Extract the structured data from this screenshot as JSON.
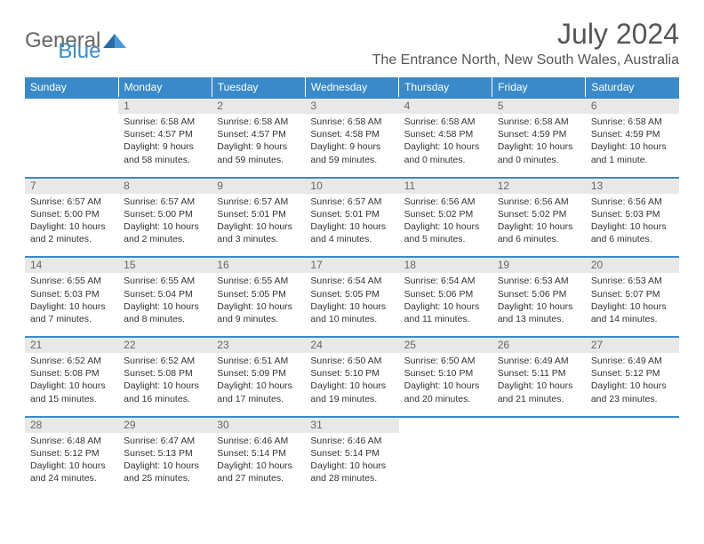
{
  "logo": {
    "text1": "General",
    "text2": "Blue"
  },
  "title": "July 2024",
  "location": "The Entrance North, New South Wales, Australia",
  "colors": {
    "header_bg": "#3a8ac9",
    "daynum_bg": "#e8e8e8",
    "text": "#333333"
  },
  "days_of_week": [
    "Sunday",
    "Monday",
    "Tuesday",
    "Wednesday",
    "Thursday",
    "Friday",
    "Saturday"
  ],
  "weeks": [
    {
      "nums": [
        "",
        "1",
        "2",
        "3",
        "4",
        "5",
        "6"
      ],
      "cells": [
        {
          "sunrise": "",
          "sunset": "",
          "daylight": ""
        },
        {
          "sunrise": "Sunrise: 6:58 AM",
          "sunset": "Sunset: 4:57 PM",
          "daylight": "Daylight: 9 hours and 58 minutes."
        },
        {
          "sunrise": "Sunrise: 6:58 AM",
          "sunset": "Sunset: 4:57 PM",
          "daylight": "Daylight: 9 hours and 59 minutes."
        },
        {
          "sunrise": "Sunrise: 6:58 AM",
          "sunset": "Sunset: 4:58 PM",
          "daylight": "Daylight: 9 hours and 59 minutes."
        },
        {
          "sunrise": "Sunrise: 6:58 AM",
          "sunset": "Sunset: 4:58 PM",
          "daylight": "Daylight: 10 hours and 0 minutes."
        },
        {
          "sunrise": "Sunrise: 6:58 AM",
          "sunset": "Sunset: 4:59 PM",
          "daylight": "Daylight: 10 hours and 0 minutes."
        },
        {
          "sunrise": "Sunrise: 6:58 AM",
          "sunset": "Sunset: 4:59 PM",
          "daylight": "Daylight: 10 hours and 1 minute."
        }
      ]
    },
    {
      "nums": [
        "7",
        "8",
        "9",
        "10",
        "11",
        "12",
        "13"
      ],
      "cells": [
        {
          "sunrise": "Sunrise: 6:57 AM",
          "sunset": "Sunset: 5:00 PM",
          "daylight": "Daylight: 10 hours and 2 minutes."
        },
        {
          "sunrise": "Sunrise: 6:57 AM",
          "sunset": "Sunset: 5:00 PM",
          "daylight": "Daylight: 10 hours and 2 minutes."
        },
        {
          "sunrise": "Sunrise: 6:57 AM",
          "sunset": "Sunset: 5:01 PM",
          "daylight": "Daylight: 10 hours and 3 minutes."
        },
        {
          "sunrise": "Sunrise: 6:57 AM",
          "sunset": "Sunset: 5:01 PM",
          "daylight": "Daylight: 10 hours and 4 minutes."
        },
        {
          "sunrise": "Sunrise: 6:56 AM",
          "sunset": "Sunset: 5:02 PM",
          "daylight": "Daylight: 10 hours and 5 minutes."
        },
        {
          "sunrise": "Sunrise: 6:56 AM",
          "sunset": "Sunset: 5:02 PM",
          "daylight": "Daylight: 10 hours and 6 minutes."
        },
        {
          "sunrise": "Sunrise: 6:56 AM",
          "sunset": "Sunset: 5:03 PM",
          "daylight": "Daylight: 10 hours and 6 minutes."
        }
      ]
    },
    {
      "nums": [
        "14",
        "15",
        "16",
        "17",
        "18",
        "19",
        "20"
      ],
      "cells": [
        {
          "sunrise": "Sunrise: 6:55 AM",
          "sunset": "Sunset: 5:03 PM",
          "daylight": "Daylight: 10 hours and 7 minutes."
        },
        {
          "sunrise": "Sunrise: 6:55 AM",
          "sunset": "Sunset: 5:04 PM",
          "daylight": "Daylight: 10 hours and 8 minutes."
        },
        {
          "sunrise": "Sunrise: 6:55 AM",
          "sunset": "Sunset: 5:05 PM",
          "daylight": "Daylight: 10 hours and 9 minutes."
        },
        {
          "sunrise": "Sunrise: 6:54 AM",
          "sunset": "Sunset: 5:05 PM",
          "daylight": "Daylight: 10 hours and 10 minutes."
        },
        {
          "sunrise": "Sunrise: 6:54 AM",
          "sunset": "Sunset: 5:06 PM",
          "daylight": "Daylight: 10 hours and 11 minutes."
        },
        {
          "sunrise": "Sunrise: 6:53 AM",
          "sunset": "Sunset: 5:06 PM",
          "daylight": "Daylight: 10 hours and 13 minutes."
        },
        {
          "sunrise": "Sunrise: 6:53 AM",
          "sunset": "Sunset: 5:07 PM",
          "daylight": "Daylight: 10 hours and 14 minutes."
        }
      ]
    },
    {
      "nums": [
        "21",
        "22",
        "23",
        "24",
        "25",
        "26",
        "27"
      ],
      "cells": [
        {
          "sunrise": "Sunrise: 6:52 AM",
          "sunset": "Sunset: 5:08 PM",
          "daylight": "Daylight: 10 hours and 15 minutes."
        },
        {
          "sunrise": "Sunrise: 6:52 AM",
          "sunset": "Sunset: 5:08 PM",
          "daylight": "Daylight: 10 hours and 16 minutes."
        },
        {
          "sunrise": "Sunrise: 6:51 AM",
          "sunset": "Sunset: 5:09 PM",
          "daylight": "Daylight: 10 hours and 17 minutes."
        },
        {
          "sunrise": "Sunrise: 6:50 AM",
          "sunset": "Sunset: 5:10 PM",
          "daylight": "Daylight: 10 hours and 19 minutes."
        },
        {
          "sunrise": "Sunrise: 6:50 AM",
          "sunset": "Sunset: 5:10 PM",
          "daylight": "Daylight: 10 hours and 20 minutes."
        },
        {
          "sunrise": "Sunrise: 6:49 AM",
          "sunset": "Sunset: 5:11 PM",
          "daylight": "Daylight: 10 hours and 21 minutes."
        },
        {
          "sunrise": "Sunrise: 6:49 AM",
          "sunset": "Sunset: 5:12 PM",
          "daylight": "Daylight: 10 hours and 23 minutes."
        }
      ]
    },
    {
      "nums": [
        "28",
        "29",
        "30",
        "31",
        "",
        "",
        ""
      ],
      "cells": [
        {
          "sunrise": "Sunrise: 6:48 AM",
          "sunset": "Sunset: 5:12 PM",
          "daylight": "Daylight: 10 hours and 24 minutes."
        },
        {
          "sunrise": "Sunrise: 6:47 AM",
          "sunset": "Sunset: 5:13 PM",
          "daylight": "Daylight: 10 hours and 25 minutes."
        },
        {
          "sunrise": "Sunrise: 6:46 AM",
          "sunset": "Sunset: 5:14 PM",
          "daylight": "Daylight: 10 hours and 27 minutes."
        },
        {
          "sunrise": "Sunrise: 6:46 AM",
          "sunset": "Sunset: 5:14 PM",
          "daylight": "Daylight: 10 hours and 28 minutes."
        },
        {
          "sunrise": "",
          "sunset": "",
          "daylight": ""
        },
        {
          "sunrise": "",
          "sunset": "",
          "daylight": ""
        },
        {
          "sunrise": "",
          "sunset": "",
          "daylight": ""
        }
      ]
    }
  ]
}
